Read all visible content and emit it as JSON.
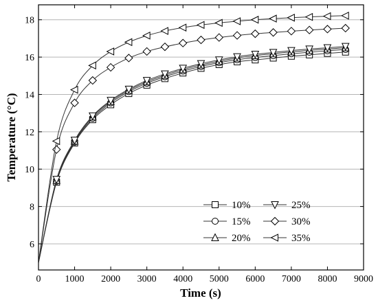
{
  "chart_data": {
    "type": "line",
    "xlabel": "Time (s)",
    "ylabel": "Temperature (°C)",
    "xlim": [
      0,
      9000
    ],
    "ylim": [
      4.6,
      18.8
    ],
    "x_ticks": [
      0,
      1000,
      2000,
      3000,
      4000,
      5000,
      6000,
      7000,
      8000,
      9000
    ],
    "y_ticks": [
      6,
      8,
      10,
      12,
      14,
      16,
      18
    ],
    "grid": "horizontal",
    "legend_placement": "bottom-right",
    "x": [
      0,
      500,
      1000,
      1500,
      2000,
      2500,
      3000,
      3500,
      4000,
      4500,
      5000,
      5500,
      6000,
      6500,
      7000,
      7500,
      8000,
      8500
    ],
    "series": [
      {
        "name": "10%",
        "marker": "square",
        "values": [
          5.0,
          9.3,
          11.4,
          12.65,
          13.45,
          14.05,
          14.5,
          14.85,
          15.15,
          15.4,
          15.6,
          15.75,
          15.85,
          15.95,
          16.05,
          16.12,
          16.2,
          16.27
        ]
      },
      {
        "name": "15%",
        "marker": "circle",
        "values": [
          5.0,
          9.35,
          11.45,
          12.72,
          13.55,
          14.15,
          14.6,
          14.95,
          15.25,
          15.5,
          15.7,
          15.86,
          15.98,
          16.08,
          16.18,
          16.26,
          16.34,
          16.41
        ]
      },
      {
        "name": "20%",
        "marker": "triangle-up",
        "values": [
          5.0,
          9.4,
          11.5,
          12.8,
          13.62,
          14.22,
          14.68,
          15.03,
          15.33,
          15.58,
          15.78,
          15.95,
          16.08,
          16.18,
          16.28,
          16.36,
          16.43,
          16.5
        ]
      },
      {
        "name": "25%",
        "marker": "triangle-down",
        "values": [
          5.0,
          9.45,
          11.55,
          12.85,
          13.68,
          14.28,
          14.75,
          15.1,
          15.4,
          15.65,
          15.85,
          16.02,
          16.15,
          16.25,
          16.35,
          16.43,
          16.5,
          16.57
        ]
      },
      {
        "name": "30%",
        "marker": "diamond",
        "values": [
          5.0,
          11.05,
          13.55,
          14.75,
          15.45,
          15.95,
          16.3,
          16.55,
          16.75,
          16.92,
          17.05,
          17.16,
          17.25,
          17.32,
          17.39,
          17.45,
          17.5,
          17.55
        ]
      },
      {
        "name": "35%",
        "marker": "triangle-left",
        "values": [
          5.0,
          11.5,
          14.25,
          15.55,
          16.3,
          16.8,
          17.15,
          17.4,
          17.58,
          17.72,
          17.83,
          17.92,
          18.0,
          18.06,
          18.11,
          18.15,
          18.19,
          18.22
        ]
      }
    ]
  }
}
